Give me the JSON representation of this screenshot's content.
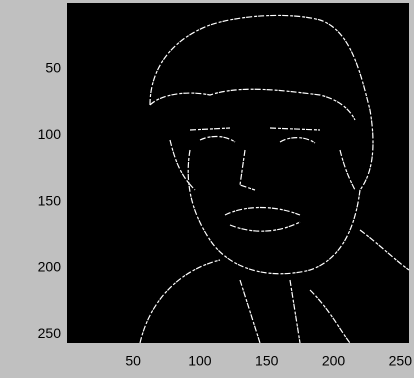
{
  "chart_data": {
    "type": "image",
    "xlim": [
      0.5,
      256.5
    ],
    "ylim": [
      0.5,
      256.5
    ],
    "xticks": [
      50,
      100,
      150,
      200,
      250
    ],
    "yticks": [
      50,
      100,
      150,
      200,
      250
    ],
    "y_reversed": true
  }
}
